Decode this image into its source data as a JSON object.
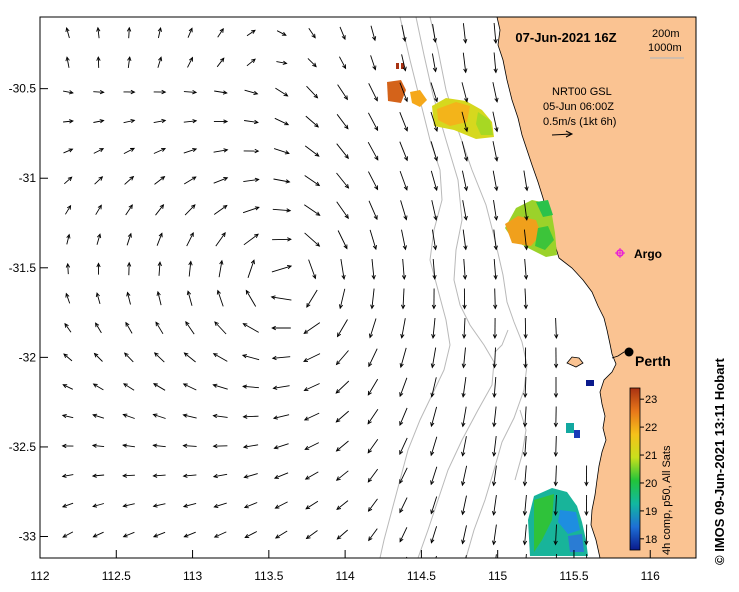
{
  "title": "07-Jun-2021 16Z",
  "depth_legend": [
    "200m",
    "1000m"
  ],
  "current_source": {
    "line1": "NRT00 GSL",
    "line2": "05-Jun 06:00Z",
    "line3": "0.5m/s (1kt 6h)"
  },
  "places": {
    "argo": "Argo",
    "perth": "Perth"
  },
  "axes": {
    "x_ticks": [
      "112",
      "112.5",
      "113",
      "113.5",
      "114",
      "114.5",
      "115",
      "115.5",
      "116"
    ],
    "y_ticks": [
      "-30.5",
      "-31",
      "-31.5",
      "-32",
      "-32.5",
      "-33"
    ],
    "xlim": [
      112,
      116.3
    ],
    "ylim": [
      -33.12,
      -30.1
    ]
  },
  "colorbar": {
    "label": "4h comp, p50, All Sats",
    "ticks": [
      "18",
      "19",
      "20",
      "21",
      "22",
      "23"
    ],
    "range": [
      17.6,
      23.4
    ],
    "stops": [
      "#0a1a8c",
      "#1e6fd6",
      "#12b8a0",
      "#22c43a",
      "#c9e01c",
      "#f5c21a",
      "#e8771a",
      "#a83212"
    ]
  },
  "credit": "© IMOS 09-Jun-2021 13:11 Hobart",
  "colors": {
    "land": "#fac392",
    "isobath": "#b9b9b9",
    "argo": "#e81cd6"
  }
}
